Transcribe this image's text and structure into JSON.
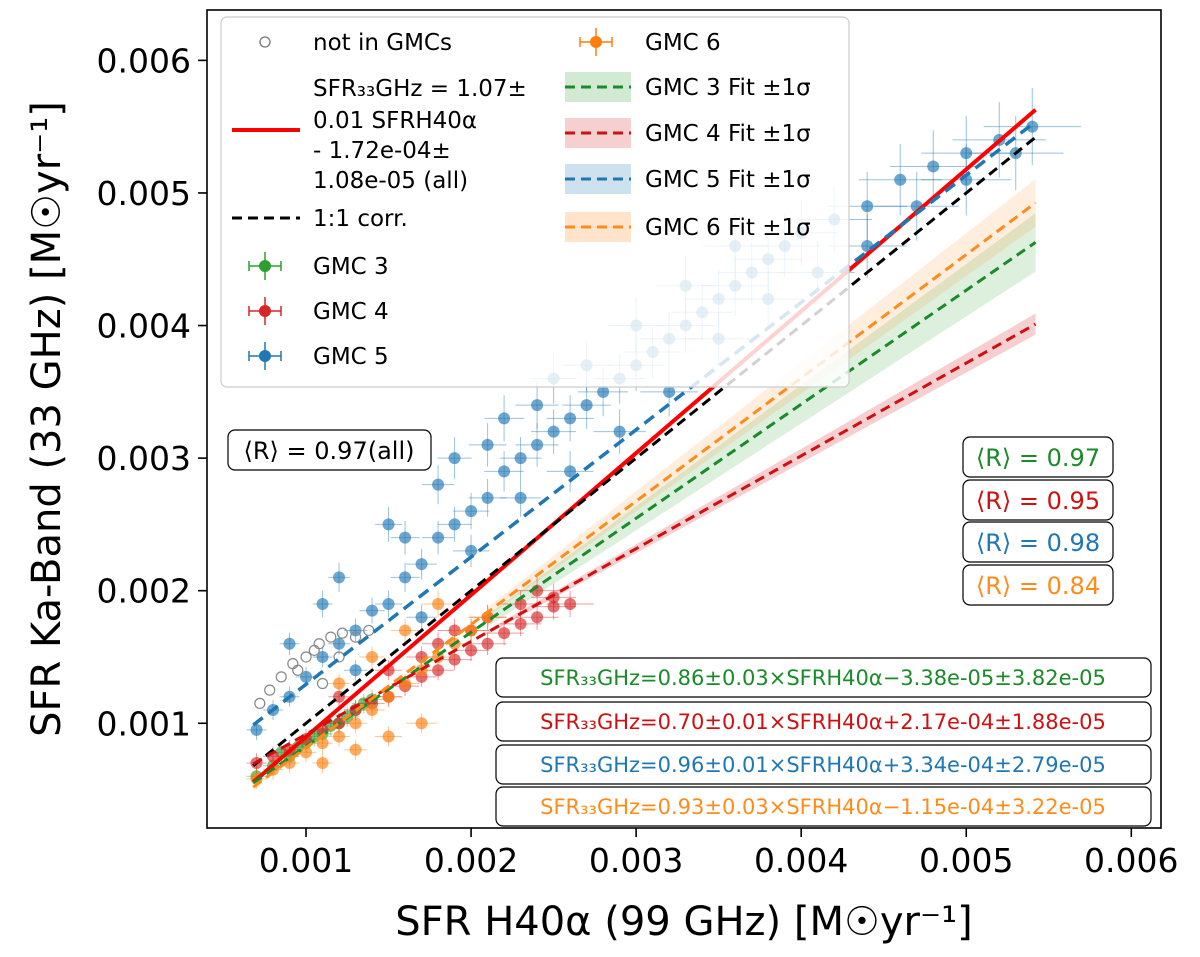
{
  "chart_data": {
    "type": "scatter",
    "xlabel": "SFR H40α (99 GHz) [M☉yr⁻¹]",
    "ylabel": "SFR Ka-Band (33 GHz) [M☉yr⁻¹]",
    "xlim": [
      0.0004,
      0.00618
    ],
    "ylim": [
      0.00021,
      0.00638
    ],
    "xticks": [
      0.001,
      0.002,
      0.003,
      0.004,
      0.005,
      0.006
    ],
    "yticks": [
      0.001,
      0.002,
      0.003,
      0.004,
      0.005,
      0.006
    ],
    "xtick_labels": [
      "0.001",
      "0.002",
      "0.003",
      "0.004",
      "0.005",
      "0.006"
    ],
    "ytick_labels": [
      "0.001",
      "0.002",
      "0.003",
      "0.004",
      "0.005",
      "0.006"
    ],
    "grid": false,
    "legend_position": "top-left",
    "colors": {
      "gmc3": "#2ca02c",
      "gmc4": "#d62728",
      "gmc5": "#1f77b4",
      "gmc6": "#ff7f0e",
      "fit3": "#1a8a2a",
      "fit4": "#d01010",
      "fit5": "#1f77b4",
      "fit6": "#ff8c1a",
      "all_fit": "#ff0000",
      "one_to_one": "#000000",
      "not_in_gmc": "#888888"
    },
    "legend": {
      "not_in_gmcs": "not in GMCs",
      "all_fit_line1": "SFR₃₃GHz = 1.07±",
      "all_fit_line2": "0.01 SFRH40α",
      "all_fit_line3": " - 1.72e-04±",
      "all_fit_line4": "1.08e-05 (all)",
      "one_to_one": "1:1 corr.",
      "gmc3": "GMC 3",
      "gmc4": "GMC 4",
      "gmc5": "GMC 5",
      "gmc6": "GMC 6",
      "fit3": "GMC 3 Fit ±1σ",
      "fit4": "GMC 4 Fit ±1σ",
      "fit5": "GMC 5 Fit ±1σ",
      "fit6": "GMC 6 Fit ±1σ"
    },
    "annotations": {
      "r_all": "⟨R⟩ = 0.97(all)",
      "r_gmc3": "⟨R⟩ = 0.97",
      "r_gmc4": "⟨R⟩ = 0.95",
      "r_gmc5": "⟨R⟩ = 0.98",
      "r_gmc6": "⟨R⟩ = 0.84",
      "eq_gmc3": "SFR₃₃GHz=0.86±0.03×SFRH40α−3.38e-05±3.82e-05",
      "eq_gmc4": "SFR₃₃GHz=0.70±0.01×SFRH40α+2.17e-04±1.88e-05",
      "eq_gmc5": "SFR₃₃GHz=0.96±0.01×SFRH40α+3.34e-04±2.79e-05",
      "eq_gmc6": "SFR₃₃GHz=0.93±0.03×SFRH40α−1.15e-04±3.22e-05"
    },
    "fits": [
      {
        "name": "all",
        "slope": 1.07,
        "intercept": -0.000172,
        "x_range": [
          0.00068,
          0.00542
        ]
      },
      {
        "name": "1:1",
        "slope": 1.0,
        "intercept": 0.0,
        "x_range": [
          0.00068,
          0.00542
        ]
      },
      {
        "name": "GMC 3",
        "slope": 0.86,
        "intercept": -3.38e-05,
        "x_range": [
          0.00068,
          0.00542
        ]
      },
      {
        "name": "GMC 4",
        "slope": 0.7,
        "intercept": 0.000217,
        "x_range": [
          0.00068,
          0.00542
        ]
      },
      {
        "name": "GMC 5",
        "slope": 0.96,
        "intercept": 0.000334,
        "x_range": [
          0.00068,
          0.00542
        ]
      },
      {
        "name": "GMC 6",
        "slope": 0.93,
        "intercept": -0.000115,
        "x_range": [
          0.00068,
          0.00542
        ]
      }
    ],
    "series": [
      {
        "name": "GMC 5",
        "points": [
          [
            0.0007,
            0.00095
          ],
          [
            0.0008,
            0.0011
          ],
          [
            0.0009,
            0.0012
          ],
          [
            0.001,
            0.00135
          ],
          [
            0.0011,
            0.0015
          ],
          [
            0.0012,
            0.0016
          ],
          [
            0.0013,
            0.0017
          ],
          [
            0.0014,
            0.00185
          ],
          [
            0.0015,
            0.0019
          ],
          [
            0.0016,
            0.0021
          ],
          [
            0.0017,
            0.0022
          ],
          [
            0.0018,
            0.0024
          ],
          [
            0.0019,
            0.0025
          ],
          [
            0.002,
            0.0026
          ],
          [
            0.0021,
            0.0027
          ],
          [
            0.0022,
            0.0029
          ],
          [
            0.0023,
            0.003
          ],
          [
            0.0024,
            0.0031
          ],
          [
            0.0025,
            0.0032
          ],
          [
            0.0026,
            0.0033
          ],
          [
            0.0027,
            0.0034
          ],
          [
            0.0028,
            0.0035
          ],
          [
            0.0029,
            0.0036
          ],
          [
            0.003,
            0.0037
          ],
          [
            0.0031,
            0.0038
          ],
          [
            0.0032,
            0.0039
          ],
          [
            0.0033,
            0.004
          ],
          [
            0.0034,
            0.0041
          ],
          [
            0.0035,
            0.0042
          ],
          [
            0.0036,
            0.0043
          ],
          [
            0.0037,
            0.0044
          ],
          [
            0.0038,
            0.0045
          ],
          [
            0.0039,
            0.0046
          ],
          [
            0.004,
            0.0047
          ],
          [
            0.0042,
            0.0048
          ],
          [
            0.0044,
            0.0049
          ],
          [
            0.0046,
            0.0051
          ],
          [
            0.0048,
            0.0052
          ],
          [
            0.005,
            0.0053
          ],
          [
            0.0052,
            0.0054
          ],
          [
            0.0054,
            0.0055
          ],
          [
            0.0012,
            0.0021
          ],
          [
            0.0015,
            0.0025
          ],
          [
            0.0018,
            0.0028
          ],
          [
            0.0021,
            0.0031
          ],
          [
            0.0024,
            0.0034
          ],
          [
            0.0027,
            0.0037
          ],
          [
            0.003,
            0.004
          ],
          [
            0.0033,
            0.0043
          ],
          [
            0.0036,
            0.0046
          ],
          [
            0.0009,
            0.0016
          ],
          [
            0.0013,
            0.0014
          ],
          [
            0.0017,
            0.0018
          ],
          [
            0.002,
            0.0023
          ],
          [
            0.0023,
            0.0027
          ],
          [
            0.0026,
            0.0029
          ],
          [
            0.0029,
            0.0032
          ],
          [
            0.0032,
            0.0035
          ],
          [
            0.0035,
            0.0039
          ],
          [
            0.0038,
            0.0042
          ],
          [
            0.0041,
            0.0044
          ],
          [
            0.0044,
            0.0046
          ],
          [
            0.0047,
            0.0049
          ],
          [
            0.005,
            0.0051
          ],
          [
            0.0053,
            0.0053
          ],
          [
            0.0011,
            0.0019
          ],
          [
            0.0016,
            0.0024
          ],
          [
            0.0019,
            0.003
          ],
          [
            0.0022,
            0.0033
          ],
          [
            0.0025,
            0.0036
          ]
        ]
      },
      {
        "name": "GMC 3",
        "points": [
          [
            0.0007,
            0.0006
          ],
          [
            0.0008,
            0.00068
          ],
          [
            0.0009,
            0.00075
          ],
          [
            0.001,
            0.00085
          ],
          [
            0.0011,
            0.00092
          ],
          [
            0.0012,
            0.001
          ],
          [
            0.0013,
            0.0011
          ],
          [
            0.0014,
            0.00118
          ],
          [
            0.00085,
            0.00078
          ],
          [
            0.00095,
            0.00082
          ],
          [
            0.00105,
            0.0009
          ],
          [
            0.00115,
            0.00098
          ],
          [
            0.00125,
            0.00105
          ],
          [
            0.00135,
            0.00115
          ]
        ]
      },
      {
        "name": "GMC 4",
        "points": [
          [
            0.0007,
            0.0007
          ],
          [
            0.0008,
            0.00075
          ],
          [
            0.0009,
            0.0008
          ],
          [
            0.001,
            0.00088
          ],
          [
            0.0011,
            0.00095
          ],
          [
            0.0012,
            0.001
          ],
          [
            0.0013,
            0.0011
          ],
          [
            0.0014,
            0.00115
          ],
          [
            0.0015,
            0.0012
          ],
          [
            0.0016,
            0.00128
          ],
          [
            0.0017,
            0.00135
          ],
          [
            0.0018,
            0.0014
          ],
          [
            0.0019,
            0.00148
          ],
          [
            0.002,
            0.00155
          ],
          [
            0.0021,
            0.0016
          ],
          [
            0.0022,
            0.00168
          ],
          [
            0.0023,
            0.00175
          ],
          [
            0.0024,
            0.0018
          ],
          [
            0.0025,
            0.00188
          ],
          [
            0.0026,
            0.0019
          ],
          [
            0.0015,
            0.0014
          ],
          [
            0.0018,
            0.0016
          ],
          [
            0.0021,
            0.0018
          ],
          [
            0.0024,
            0.002
          ],
          [
            0.0012,
            0.0012
          ],
          [
            0.0017,
            0.0015
          ],
          [
            0.002,
            0.0017
          ],
          [
            0.0023,
            0.0019
          ],
          [
            0.0025,
            0.00195
          ],
          [
            0.0019,
            0.0017
          ]
        ]
      },
      {
        "name": "GMC 6",
        "points": [
          [
            0.0007,
            0.00058
          ],
          [
            0.0008,
            0.00065
          ],
          [
            0.0009,
            0.0007
          ],
          [
            0.001,
            0.00078
          ],
          [
            0.0011,
            0.00085
          ],
          [
            0.0012,
            0.0009
          ],
          [
            0.0013,
            0.001
          ],
          [
            0.0014,
            0.0011
          ],
          [
            0.0015,
            0.0012
          ],
          [
            0.0016,
            0.0013
          ],
          [
            0.0017,
            0.0014
          ],
          [
            0.0018,
            0.0015
          ],
          [
            0.0019,
            0.0016
          ],
          [
            0.002,
            0.0017
          ],
          [
            0.0021,
            0.0018
          ],
          [
            0.0012,
            0.0013
          ],
          [
            0.0014,
            0.0015
          ],
          [
            0.0016,
            0.0017
          ],
          [
            0.0018,
            0.0019
          ],
          [
            0.0011,
            0.0007
          ],
          [
            0.0013,
            0.0008
          ],
          [
            0.0015,
            0.0009
          ],
          [
            0.0017,
            0.001
          ]
        ]
      },
      {
        "name": "not in GMCs",
        "points": [
          [
            0.00072,
            0.00115
          ],
          [
            0.00078,
            0.00125
          ],
          [
            0.00085,
            0.00135
          ],
          [
            0.00092,
            0.00145
          ],
          [
            0.001,
            0.0015
          ],
          [
            0.00108,
            0.0016
          ],
          [
            0.00115,
            0.00165
          ],
          [
            0.00122,
            0.00168
          ],
          [
            0.0013,
            0.00165
          ],
          [
            0.00138,
            0.0017
          ],
          [
            0.00095,
            0.0014
          ],
          [
            0.00105,
            0.00155
          ],
          [
            0.0011,
            0.0013
          ],
          [
            0.0012,
            0.0015
          ]
        ]
      }
    ]
  }
}
